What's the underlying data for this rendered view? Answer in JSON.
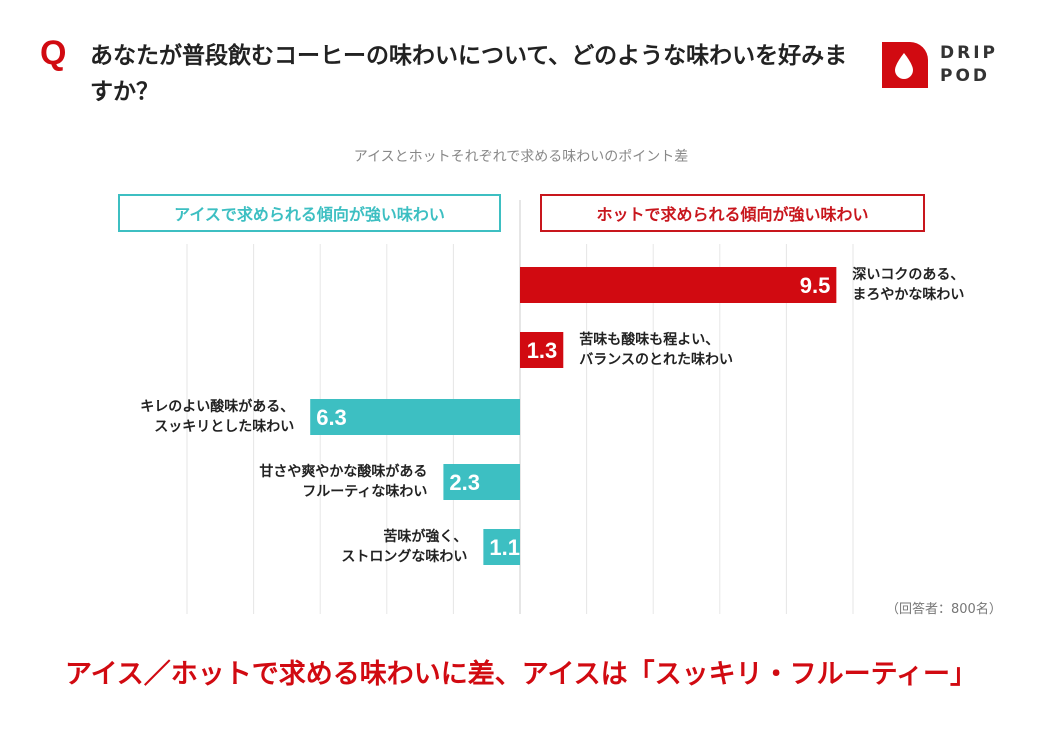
{
  "header": {
    "q_mark": "Q",
    "question": "あなたが普段飲むコーヒーの味わいについて、どのような味わいを好みますか？"
  },
  "logo": {
    "line1": "DRIP",
    "line2": "POD"
  },
  "colors": {
    "hot": "#d10a11",
    "ice": "#3dbfc2",
    "grid": "#e6e6e6"
  },
  "chart_data": {
    "type": "bar",
    "orientation": "horizontal-diverging",
    "title": "アイスとホットそれぞれで求める味わいのポイント差",
    "legend": {
      "ice": "アイスで求められる傾向が強い味わい",
      "hot": "ホットで求められる傾向が強い味わい"
    },
    "x_unit": "ポイント",
    "xlim": [
      -10.5,
      10.5
    ],
    "categories": [
      {
        "line1": "深いコクのある、",
        "line2": "まろやかな味わい",
        "value": 9.5,
        "label": "9.5",
        "side": "hot"
      },
      {
        "line1": "苦味も酸味も程よい、",
        "line2": "バランスのとれた味わい",
        "value": 1.3,
        "label": "1.3",
        "side": "hot"
      },
      {
        "line1": "キレのよい酸味がある、",
        "line2": "スッキリとした味わい",
        "value": 6.3,
        "label": "6.3",
        "side": "ice"
      },
      {
        "line1": "甘さや爽やかな酸味がある",
        "line2": "フルーティな味わい",
        "value": 2.3,
        "label": "2.3",
        "side": "ice"
      },
      {
        "line1": "苦味が強く、",
        "line2": "ストロングな味わい",
        "value": 1.1,
        "label": "1.1",
        "side": "ice"
      }
    ]
  },
  "footnote": "（回答者：800名）",
  "headline": "アイス／ホットで求める味わいに差、アイスは「スッキリ・フルーティー」"
}
